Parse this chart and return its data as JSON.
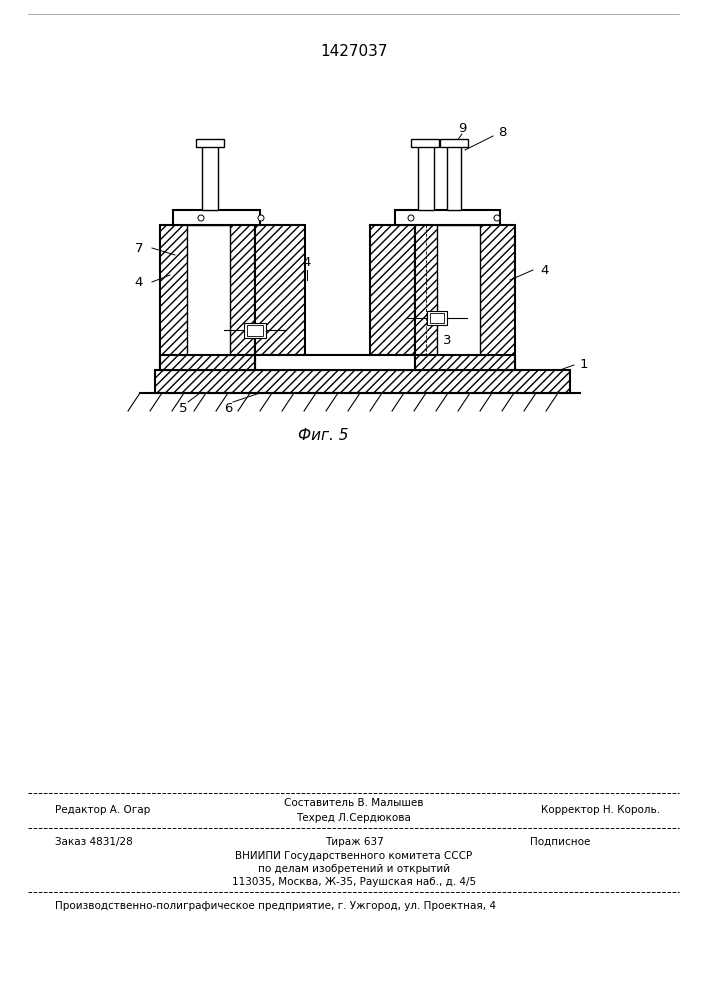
{
  "patent_number": "1427037",
  "fig_label": "Фиг. 5",
  "bg_color": "#ffffff",
  "footer": {
    "line1_left": "Редактор А. Огар",
    "line1_center_top": "Составитель В. Малышев",
    "line1_center_bot": "Техред Л.Сердюкова",
    "line1_right": "Корректор Н. Король.",
    "line2_left": "Заказ 4831/28",
    "line2_center": "Тираж 637",
    "line2_right": "Подписное",
    "line3": "ВНИИПИ Государственного комитета СССР",
    "line4": "по делам изобретений и открытий",
    "line5": "113035, Москва, Ж-35, Раушская наб., д. 4/5",
    "line6": "Производственно-полиграфическое предприятие, г. Ужгород, ул. Проектная, 4"
  }
}
